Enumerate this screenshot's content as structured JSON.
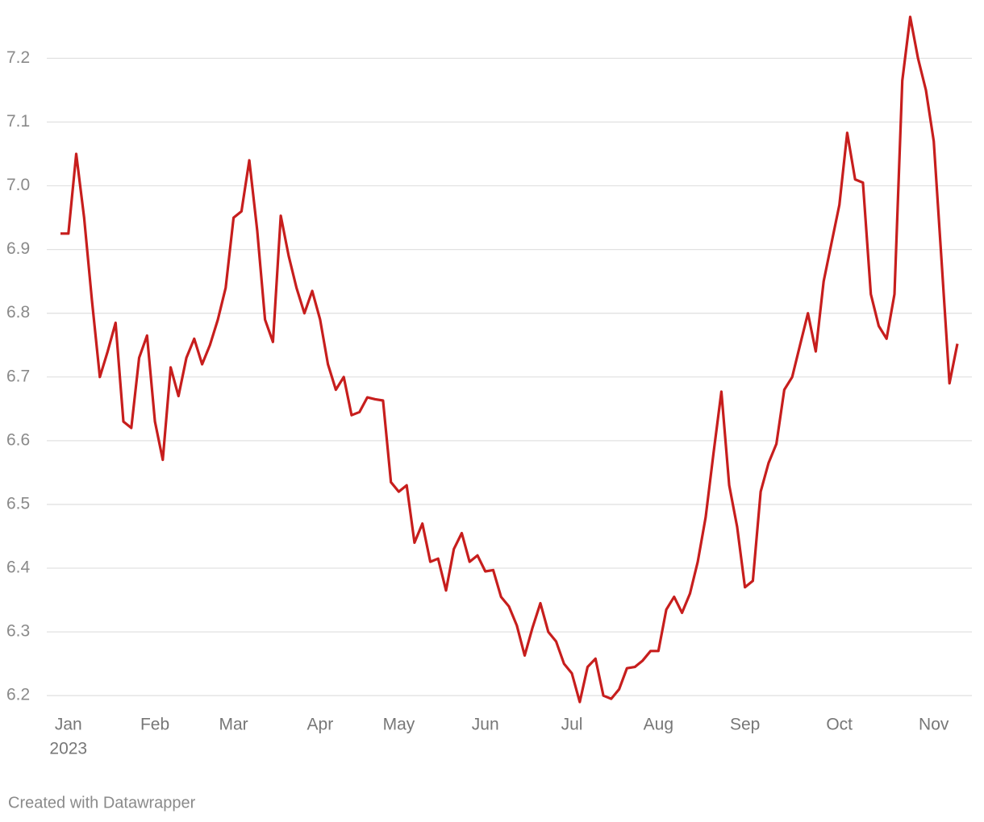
{
  "chart_data": {
    "type": "line",
    "categories": [
      null,
      "Jan",
      null,
      null,
      null,
      null,
      null,
      null,
      null,
      null,
      null,
      null,
      "Feb",
      null,
      null,
      null,
      null,
      null,
      null,
      null,
      null,
      null,
      "Mar",
      null,
      null,
      null,
      null,
      null,
      null,
      null,
      null,
      null,
      null,
      "Apr",
      null,
      null,
      null,
      null,
      null,
      null,
      null,
      null,
      null,
      "May",
      null,
      null,
      null,
      null,
      null,
      null,
      null,
      null,
      null,
      null,
      "Jun",
      null,
      null,
      null,
      null,
      null,
      null,
      null,
      null,
      null,
      null,
      "Jul",
      null,
      null,
      null,
      null,
      null,
      null,
      null,
      null,
      null,
      null,
      "Aug",
      null,
      null,
      null,
      null,
      null,
      null,
      null,
      null,
      null,
      null,
      "Sep",
      null,
      null,
      null,
      null,
      null,
      null,
      null,
      null,
      null,
      null,
      null,
      "Oct",
      null,
      null,
      null,
      null,
      null,
      null,
      null,
      null,
      null,
      null,
      null,
      "Nov",
      null,
      null,
      null
    ],
    "year": "2023",
    "values": [
      6.925,
      6.925,
      7.05,
      6.95,
      6.82,
      6.7,
      6.74,
      6.785,
      6.63,
      6.62,
      6.73,
      6.765,
      6.63,
      6.57,
      6.715,
      6.67,
      6.73,
      6.76,
      6.72,
      6.75,
      6.79,
      6.84,
      6.95,
      6.96,
      7.04,
      6.93,
      6.79,
      6.755,
      6.953,
      6.89,
      6.84,
      6.8,
      6.835,
      6.79,
      6.72,
      6.68,
      6.7,
      6.64,
      6.645,
      6.668,
      6.665,
      6.663,
      6.535,
      6.52,
      6.53,
      6.44,
      6.47,
      6.41,
      6.415,
      6.365,
      6.43,
      6.455,
      6.41,
      6.42,
      6.395,
      6.397,
      6.355,
      6.34,
      6.31,
      6.263,
      6.307,
      6.345,
      6.3,
      6.285,
      6.25,
      6.235,
      6.19,
      6.245,
      6.258,
      6.2,
      6.195,
      6.21,
      6.243,
      6.245,
      6.255,
      6.27,
      6.27,
      6.335,
      6.355,
      6.33,
      6.36,
      6.41,
      6.48,
      6.58,
      6.677,
      6.53,
      6.465,
      6.37,
      6.38,
      6.52,
      6.565,
      6.595,
      6.68,
      6.7,
      6.75,
      6.8,
      6.74,
      6.85,
      6.91,
      6.97,
      7.083,
      7.01,
      7.005,
      6.83,
      6.78,
      6.76,
      6.83,
      7.165,
      7.265,
      7.2,
      7.15,
      7.07,
      6.88,
      6.69,
      6.752
    ],
    "color": "#c71e1d",
    "ylim": [
      6.18,
      7.27
    ],
    "yticks": [
      6.2,
      6.3,
      6.4,
      6.5,
      6.6,
      6.7,
      6.8,
      6.9,
      {
        "value": 7,
        "label": "7.0"
      },
      7.1,
      7.2
    ],
    "grid": true,
    "credit": "Created with Datawrapper"
  }
}
